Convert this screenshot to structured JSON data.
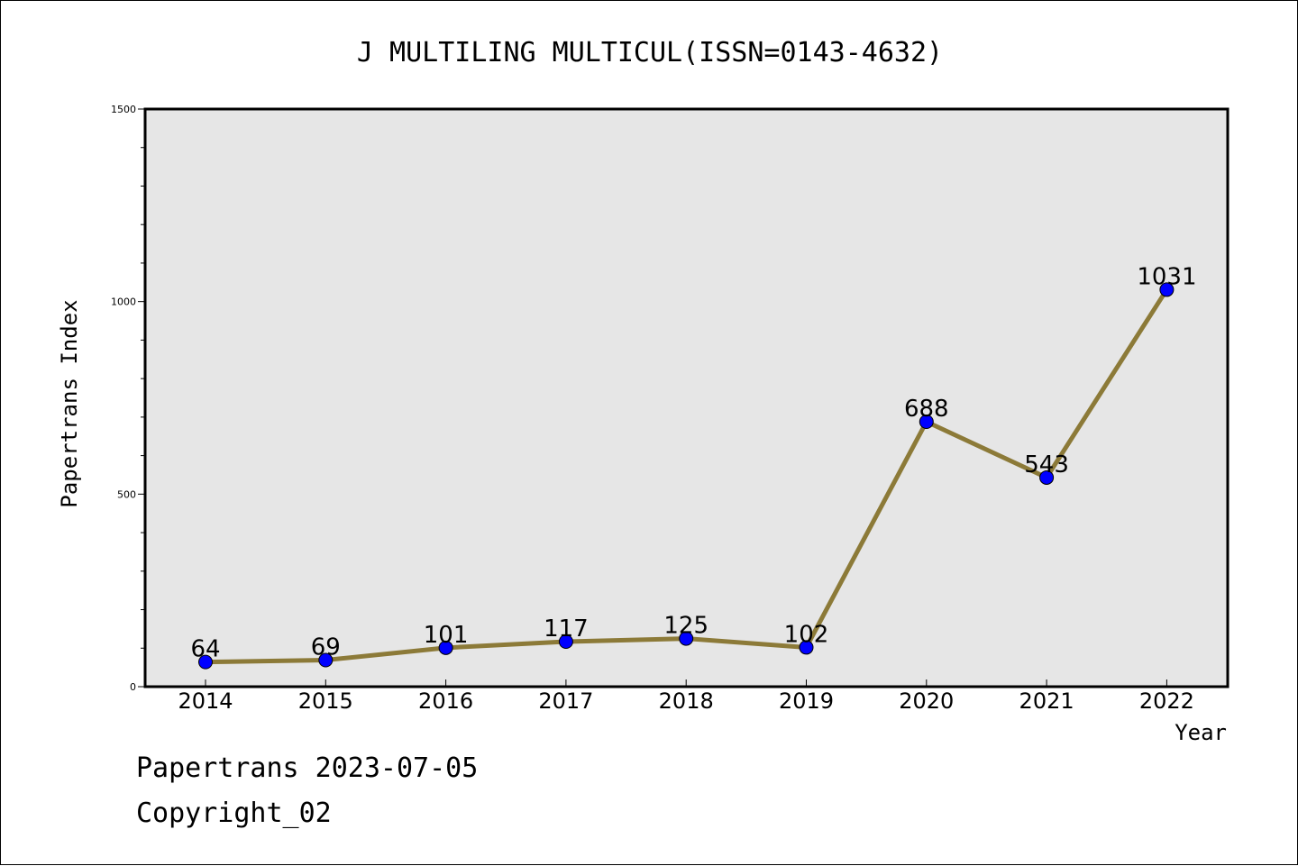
{
  "chart_data": {
    "type": "line",
    "title": "J MULTILING MULTICUL(ISSN=0143-4632)",
    "xlabel": "Year",
    "ylabel": "Papertrans Index",
    "categories": [
      "2014",
      "2015",
      "2016",
      "2017",
      "2018",
      "2019",
      "2020",
      "2021",
      "2022"
    ],
    "series": [
      {
        "values": [
          64,
          69,
          101,
          117,
          125,
          102,
          688,
          543,
          1031
        ]
      }
    ],
    "ylim": [
      0,
      1500
    ],
    "yticks": [
      "0",
      "500",
      "1000",
      "1500"
    ],
    "grid": false,
    "colors": {
      "line": "#8c7a38",
      "marker": "#0000ff",
      "plot_bg": "#e6e6e6"
    }
  },
  "footer": {
    "line1": "Papertrans 2023-07-05",
    "line2": "Copyright_02"
  }
}
